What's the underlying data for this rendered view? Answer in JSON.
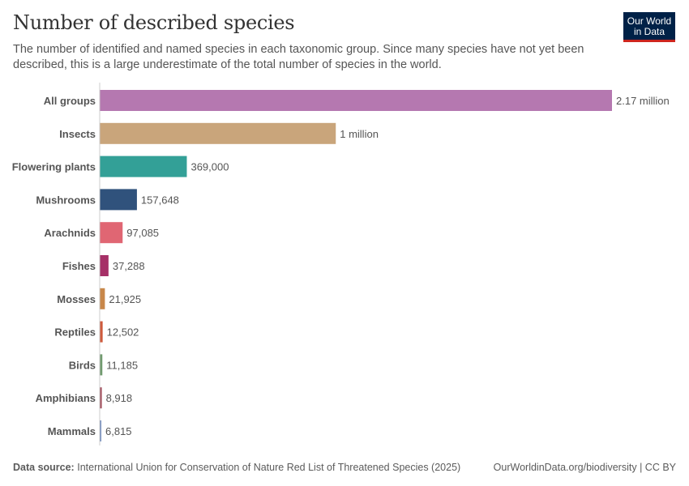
{
  "header": {
    "title": "Number of described species",
    "subtitle": "The number of identified and named species in each taxonomic group. Since many species have not yet been described, this is a large underestimate of the total number of species in the world.",
    "logo": "Our World in Data"
  },
  "footer": {
    "source_label": "Data source:",
    "source": "International Union for Conservation of Nature Red List of Threatened Species (2025)",
    "link": "OurWorldinData.org/biodiversity | CC BY"
  },
  "chart_data": {
    "type": "bar",
    "orientation": "horizontal",
    "categories": [
      "All groups",
      "Insects",
      "Flowering plants",
      "Mushrooms",
      "Arachnids",
      "Fishes",
      "Mosses",
      "Reptiles",
      "Birds",
      "Amphibians",
      "Mammals"
    ],
    "values": [
      2170000,
      1000000,
      369000,
      157648,
      97085,
      37288,
      21925,
      12502,
      11185,
      8918,
      6815
    ],
    "data_labels": [
      "2.17 million",
      "1 million",
      "369,000",
      "157,648",
      "97,085",
      "37,288",
      "21,925",
      "12,502",
      "11,185",
      "8,918",
      "6,815"
    ],
    "colors": [
      "#b578b0",
      "#c9a57b",
      "#33a097",
      "#30527c",
      "#e06673",
      "#a63067",
      "#c8874a",
      "#ce5a3c",
      "#709a6e",
      "#a3505e",
      "#7690c0"
    ],
    "xlim": [
      0,
      2170000
    ],
    "grid": false
  }
}
